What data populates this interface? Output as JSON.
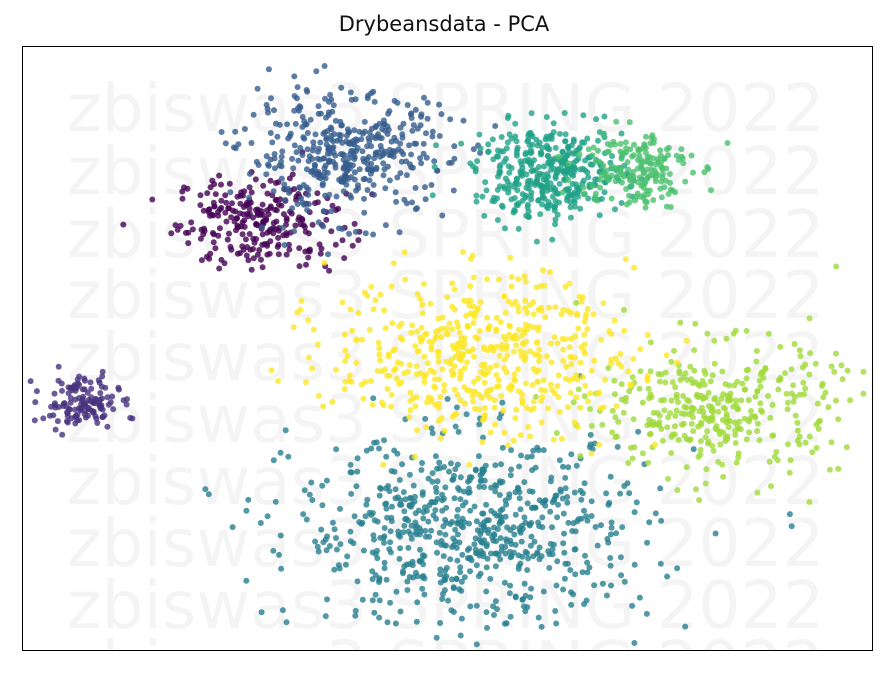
{
  "chart_data": {
    "type": "scatter",
    "title": "Drybeansdata - PCA",
    "xlabel": "",
    "ylabel": "",
    "grid": false,
    "legend": "none",
    "watermark": "zbiswas3 SPRING 2022",
    "point_alpha": 0.8,
    "colormap": "viridis",
    "xlim": [
      0,
      100
    ],
    "ylim": [
      0,
      100
    ],
    "clusters": [
      {
        "color": "#440154",
        "center": [
          28,
          71
        ],
        "spread": [
          9,
          7
        ],
        "points": 260,
        "label_index": 0
      },
      {
        "color": "#46327e",
        "center": [
          7,
          41
        ],
        "spread": [
          4,
          4
        ],
        "points": 130,
        "label_index": 1
      },
      {
        "color": "#365c8d",
        "center": [
          38,
          82
        ],
        "spread": [
          11,
          9
        ],
        "points": 420,
        "label_index": 2
      },
      {
        "color": "#277f8e",
        "center": [
          53,
          20
        ],
        "spread": [
          19,
          14
        ],
        "points": 700,
        "label_index": 3
      },
      {
        "color": "#1fa187",
        "center": [
          62,
          79
        ],
        "spread": [
          8,
          7
        ],
        "points": 380,
        "label_index": 4
      },
      {
        "color": "#4ac16d",
        "center": [
          72,
          80
        ],
        "spread": [
          6,
          6
        ],
        "points": 180,
        "label_index": 5
      },
      {
        "color": "#a0da39",
        "center": [
          82,
          40
        ],
        "spread": [
          13,
          10
        ],
        "points": 360,
        "label_index": 6
      },
      {
        "color": "#fde725",
        "center": [
          54,
          49
        ],
        "spread": [
          16,
          12
        ],
        "points": 520,
        "label_index": 7
      }
    ]
  }
}
